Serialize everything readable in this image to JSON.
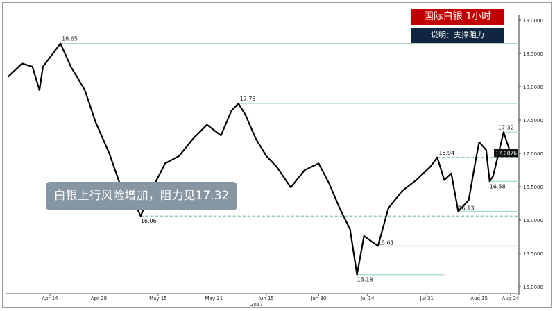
{
  "header": {
    "title": "国际白银  1小时",
    "subtitle": "说明：支撑阻力"
  },
  "annotation": "白银上行风险增加，阻力见17.32",
  "chart_data": {
    "type": "line",
    "title": "国际白银  1小时",
    "xlabel": "2017",
    "ylabel": "",
    "ylim": [
      15.0,
      19.0
    ],
    "y_ticks": [
      "19.0000",
      "18.5000",
      "18.0000",
      "17.5000",
      "17.0000",
      "16.5000",
      "16.0000",
      "15.5000",
      "15.0000"
    ],
    "x_ticks": [
      {
        "date": "2017-04-14",
        "label": "Apr 14"
      },
      {
        "date": "2017-04-28",
        "label": "Apr 28"
      },
      {
        "date": "2017-05-15",
        "label": "May 15"
      },
      {
        "date": "2017-05-31",
        "label": "May 31"
      },
      {
        "date": "2017-06-15",
        "label": "Jun 15"
      },
      {
        "date": "2017-06-30",
        "label": "Jun 30"
      },
      {
        "date": "2017-07-14",
        "label": "Jul 14"
      },
      {
        "date": "2017-07-31",
        "label": "Jul 31"
      },
      {
        "date": "2017-08-15",
        "label": "Aug 15"
      },
      {
        "date": "2017-08-24",
        "label": "Aug 24"
      }
    ],
    "year_label": "2017",
    "last_price": "17.0076",
    "colors": {
      "line": "#000000",
      "level": "#a8dcc0",
      "title_bg": "#c00000",
      "subtitle_bg": "#0f2540",
      "note_bg": "#8796a3"
    },
    "series": [
      {
        "points": [
          [
            "2017-04-02",
            18.15
          ],
          [
            "2017-04-06",
            18.35
          ],
          [
            "2017-04-09",
            18.3
          ],
          [
            "2017-04-11",
            17.95
          ],
          [
            "2017-04-12",
            18.3
          ],
          [
            "2017-04-17",
            18.65
          ],
          [
            "2017-04-20",
            18.3
          ],
          [
            "2017-04-24",
            17.95
          ],
          [
            "2017-04-27",
            17.48
          ],
          [
            "2017-05-01",
            17.0
          ],
          [
            "2017-05-04",
            16.55
          ],
          [
            "2017-05-07",
            16.4
          ],
          [
            "2017-05-10",
            16.06
          ],
          [
            "2017-05-13",
            16.44
          ],
          [
            "2017-05-17",
            16.85
          ],
          [
            "2017-05-21",
            16.96
          ],
          [
            "2017-05-25",
            17.22
          ],
          [
            "2017-05-29",
            17.43
          ],
          [
            "2017-06-02",
            17.27
          ],
          [
            "2017-06-05",
            17.64
          ],
          [
            "2017-06-07",
            17.75
          ],
          [
            "2017-06-09",
            17.58
          ],
          [
            "2017-06-12",
            17.22
          ],
          [
            "2017-06-15",
            16.96
          ],
          [
            "2017-06-18",
            16.8
          ],
          [
            "2017-06-22",
            16.49
          ],
          [
            "2017-06-26",
            16.75
          ],
          [
            "2017-06-30",
            16.85
          ],
          [
            "2017-07-03",
            16.55
          ],
          [
            "2017-07-06",
            16.18
          ],
          [
            "2017-07-09",
            15.86
          ],
          [
            "2017-07-11",
            15.18
          ],
          [
            "2017-07-13",
            15.76
          ],
          [
            "2017-07-17",
            15.61
          ],
          [
            "2017-07-20",
            16.18
          ],
          [
            "2017-07-24",
            16.44
          ],
          [
            "2017-07-28",
            16.6
          ],
          [
            "2017-08-01",
            16.8
          ],
          [
            "2017-08-03",
            16.94
          ],
          [
            "2017-08-05",
            16.6
          ],
          [
            "2017-08-07",
            16.7
          ],
          [
            "2017-08-09",
            16.13
          ],
          [
            "2017-08-12",
            16.3
          ],
          [
            "2017-08-14",
            16.9
          ],
          [
            "2017-08-15",
            17.17
          ],
          [
            "2017-08-17",
            17.05
          ],
          [
            "2017-08-18",
            16.58
          ],
          [
            "2017-08-19",
            16.66
          ],
          [
            "2017-08-21",
            17.1
          ],
          [
            "2017-08-22",
            17.32
          ],
          [
            "2017-08-24",
            17.0
          ],
          [
            "2017-08-26",
            17.01
          ]
        ]
      }
    ],
    "levels": [
      {
        "value": 18.65,
        "label": "18.65",
        "from": "2017-04-17",
        "dashed": false
      },
      {
        "value": 17.75,
        "label": "17.75",
        "from": "2017-06-07",
        "dashed": false
      },
      {
        "value": 17.32,
        "label": "17.32",
        "from": "2017-08-22",
        "dashed": false
      },
      {
        "value": 16.94,
        "label": "16.94",
        "from": "2017-08-03",
        "dashed": true
      },
      {
        "value": 16.58,
        "label": "16.58",
        "from": "2017-08-18",
        "dashed": false
      },
      {
        "value": 16.13,
        "label": "16.13",
        "from": "2017-08-09",
        "dashed": false
      },
      {
        "value": 16.06,
        "label": "16.06",
        "from": "2017-05-10",
        "dashed": true
      },
      {
        "value": 15.61,
        "label": "15.61",
        "from": "2017-07-17",
        "dashed": false
      },
      {
        "value": 15.18,
        "label": "15.18",
        "from": "2017-07-11",
        "to": "2017-08-05",
        "dashed": false
      }
    ]
  }
}
